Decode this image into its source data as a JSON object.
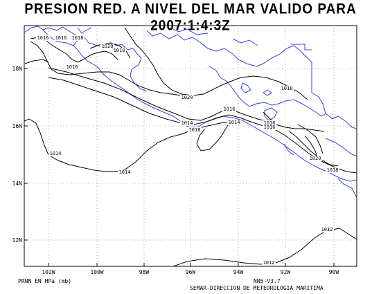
{
  "title": "PRESION RED. A NIVEL DEL MAR VALIDO PARA 2007:1:4:3Z",
  "x_ticks": [
    "102W",
    "100W",
    "98W",
    "96W",
    "94W",
    "92W",
    "90W"
  ],
  "y_ticks": [
    "18N",
    "16N",
    "14N",
    "12N"
  ],
  "isobar_labels": [
    "1016",
    "1016",
    "1018",
    "1020",
    "1018",
    "1016",
    "1020",
    "1018",
    "1016",
    "1014",
    "1018",
    "1014",
    "1016",
    "1016",
    "1020",
    "1018",
    "1014",
    "1014",
    "1012",
    "1012"
  ],
  "footer": {
    "units": "PRNN EN HPa (mb)",
    "model": "NN5-V3.7",
    "agency": "SEMAR-DIRECCION DE METEOROLOGIA MARITIMA"
  },
  "colors": {
    "coast": "#3344dd",
    "isobar": "#000000",
    "grid": "#888888"
  }
}
